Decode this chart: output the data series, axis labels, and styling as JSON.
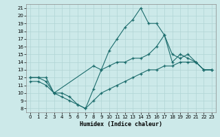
{
  "xlabel": "Humidex (Indice chaleur)",
  "xlim": [
    -0.5,
    23.5
  ],
  "ylim": [
    7.5,
    21.5
  ],
  "xticks": [
    0,
    1,
    2,
    3,
    4,
    5,
    6,
    7,
    8,
    9,
    10,
    11,
    12,
    13,
    14,
    15,
    16,
    17,
    18,
    19,
    20,
    21,
    22,
    23
  ],
  "yticks": [
    8,
    9,
    10,
    11,
    12,
    13,
    14,
    15,
    16,
    17,
    18,
    19,
    20,
    21
  ],
  "bg_color": "#cce9e9",
  "grid_color": "#b0d4d4",
  "line_color": "#1a6b6b",
  "line1_x": [
    0,
    1,
    2,
    3,
    4,
    5,
    6,
    7,
    8,
    9,
    10,
    11,
    12,
    13,
    14,
    15,
    16,
    17,
    18,
    19,
    20,
    21,
    22,
    23
  ],
  "line1_y": [
    12,
    12,
    12,
    10,
    10,
    9.5,
    8.5,
    8,
    10.5,
    13,
    15.5,
    17,
    18.5,
    19.5,
    21,
    19,
    19,
    17.5,
    15,
    14.5,
    15,
    14,
    13,
    13
  ],
  "line2_x": [
    0,
    1,
    2,
    3,
    8,
    9,
    10,
    11,
    12,
    13,
    14,
    15,
    16,
    17,
    18,
    19,
    20,
    21,
    22,
    23
  ],
  "line2_y": [
    12,
    12,
    11.5,
    10,
    13.5,
    13,
    13.5,
    14,
    14,
    14.5,
    14.5,
    15,
    16,
    17.5,
    14,
    15,
    14.5,
    14,
    13,
    13
  ],
  "line3_x": [
    0,
    1,
    2,
    3,
    4,
    5,
    6,
    7,
    8,
    9,
    10,
    11,
    12,
    13,
    14,
    15,
    16,
    17,
    18,
    19,
    20,
    21,
    22,
    23
  ],
  "line3_y": [
    11.5,
    11.5,
    11,
    10,
    9.5,
    9,
    8.5,
    8,
    9,
    10,
    10.5,
    11,
    11.5,
    12,
    12.5,
    13,
    13,
    13.5,
    13.5,
    14,
    14,
    14,
    13,
    13
  ],
  "tick_labelsize": 5,
  "xlabel_fontsize": 6
}
